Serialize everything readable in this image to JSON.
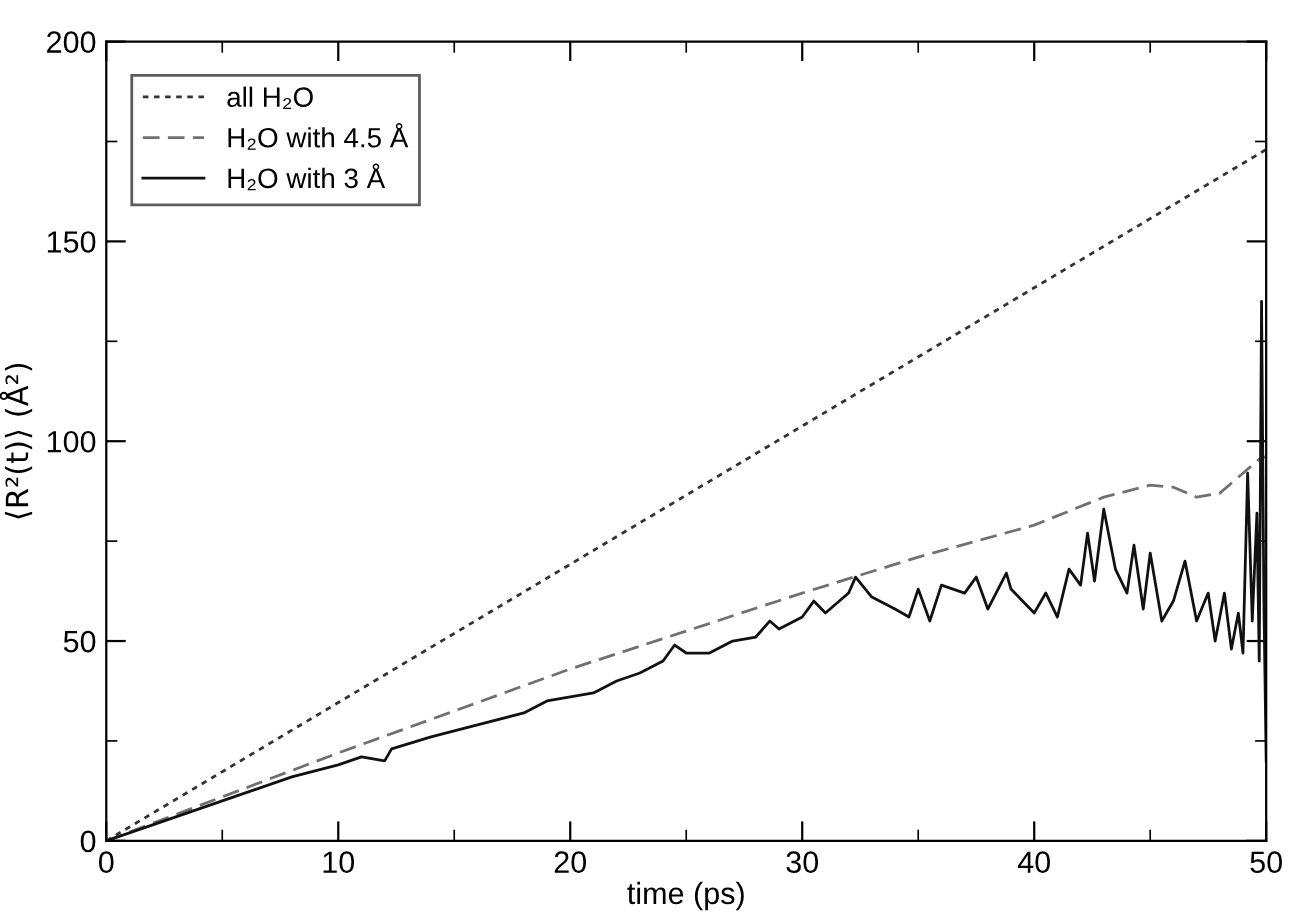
{
  "chart_data": {
    "type": "line",
    "xlabel": "time (ps)",
    "ylabel": "⟨R²(t)⟩ (Å²)",
    "xlim": [
      0,
      50
    ],
    "ylim": [
      0,
      200
    ],
    "xticks": [
      0,
      10,
      20,
      30,
      40,
      50
    ],
    "yticks": [
      0,
      50,
      100,
      150,
      200
    ],
    "grid": false,
    "legend": "top left",
    "marker": "none",
    "series": [
      {
        "name": "all H₂O",
        "color": "#333333",
        "line_style": "dotted",
        "x": [
          0,
          50
        ],
        "values": [
          0,
          173
        ]
      },
      {
        "name": "H₂O with 4.5 Å",
        "color": "#707070",
        "line_style": "dashed",
        "x": [
          0,
          10,
          20,
          30,
          35,
          40,
          43,
          45,
          46,
          47,
          48,
          49,
          49.8,
          50
        ],
        "values": [
          0,
          22,
          43,
          62,
          71,
          79,
          86,
          89,
          88.5,
          86,
          87,
          92,
          96,
          96
        ]
      },
      {
        "name": "H₂O with 3 Å",
        "color": "#111111",
        "line_style": "solid",
        "x": [
          0,
          2,
          4,
          6,
          8,
          10,
          11,
          12,
          12.3,
          14,
          16,
          18,
          19,
          20,
          21,
          22,
          23,
          24,
          24.5,
          25,
          26,
          27,
          28,
          28.6,
          29,
          30,
          30.5,
          31,
          32,
          32.3,
          33,
          34,
          34.6,
          35,
          35.5,
          36,
          37,
          37.5,
          38,
          38.8,
          39,
          40,
          40.5,
          41,
          41.5,
          42,
          42.3,
          42.6,
          43,
          43.5,
          44,
          44.3,
          44.7,
          45,
          45.5,
          46,
          46.5,
          47,
          47.5,
          47.8,
          48.2,
          48.5,
          48.8,
          49,
          49.2,
          49.4,
          49.6,
          49.7,
          49.8,
          49.9,
          50
        ],
        "values": [
          0,
          4,
          8,
          12,
          16,
          19,
          21,
          20,
          23,
          26,
          29,
          32,
          35,
          36,
          37,
          40,
          42,
          45,
          49,
          47,
          47,
          50,
          51,
          55,
          53,
          56,
          60,
          57,
          62,
          66,
          61,
          58,
          56,
          63,
          55,
          64,
          62,
          66,
          58,
          67,
          63,
          57,
          62,
          56,
          68,
          64,
          77,
          65,
          83,
          68,
          62,
          74,
          58,
          72,
          55,
          60,
          70,
          55,
          62,
          50,
          62,
          48,
          57,
          47,
          92,
          55,
          82,
          45,
          135,
          60,
          20
        ]
      }
    ]
  }
}
